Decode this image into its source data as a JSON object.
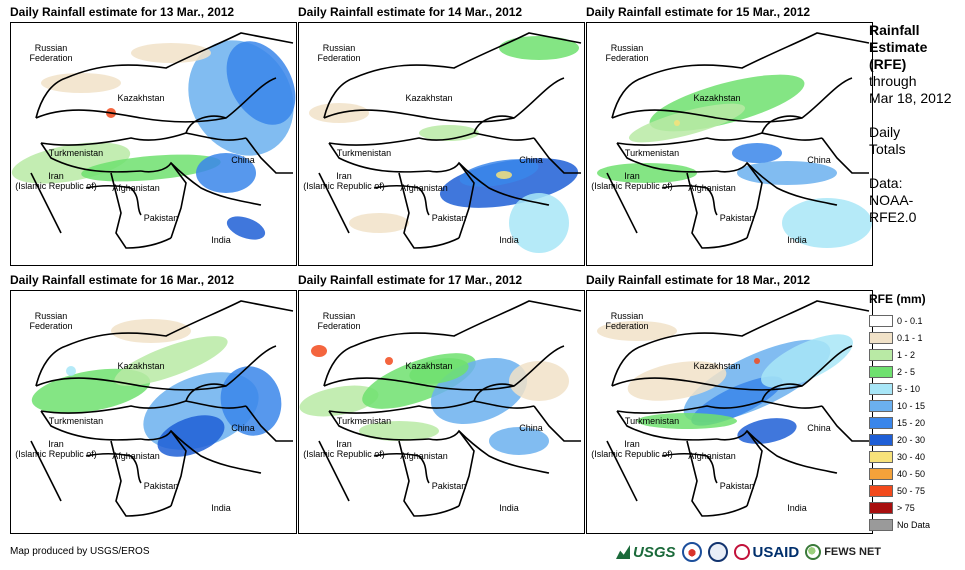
{
  "panels": [
    {
      "title": "Daily Rainfall estimate for 13 Mar., 2012",
      "pattern": "a"
    },
    {
      "title": "Daily Rainfall estimate for 14 Mar., 2012",
      "pattern": "b"
    },
    {
      "title": "Daily Rainfall estimate for 15 Mar., 2012",
      "pattern": "c"
    },
    {
      "title": "Daily Rainfall estimate for 16 Mar., 2012",
      "pattern": "d"
    },
    {
      "title": "Daily Rainfall estimate for 17 Mar., 2012",
      "pattern": "e"
    },
    {
      "title": "Daily Rainfall estimate for 18 Mar., 2012",
      "pattern": "f"
    }
  ],
  "countries": {
    "russia": "Russian\nFederation",
    "kazakhstan": "Kazakhstan",
    "turkmenistan": "Turkmenistan",
    "iran": "Iran\n(Islamic Republic of)",
    "afghanistan": "Afghanistan",
    "pakistan": "Pakistan",
    "india": "India",
    "china": "China"
  },
  "side": {
    "line1": "Rainfall",
    "line2": "Estimate",
    "line3": "(RFE)",
    "line4": "through",
    "line5": "Mar 18, 2012",
    "line6": "Daily",
    "line7": "Totals",
    "line8": "Data:",
    "line9": "NOAA-",
    "line10": "RFE2.0"
  },
  "legend": {
    "title": "RFE (mm)",
    "items": [
      {
        "label": "0 - 0.1",
        "color": "#ffffff"
      },
      {
        "label": "0.1 - 1",
        "color": "#f1e2c8"
      },
      {
        "label": "1 - 2",
        "color": "#b9eaa5"
      },
      {
        "label": "2 - 5",
        "color": "#6fe06f"
      },
      {
        "label": "5 - 10",
        "color": "#a8e6f7"
      },
      {
        "label": "10 - 15",
        "color": "#6bb0ef"
      },
      {
        "label": "15 - 20",
        "color": "#3a86ea"
      },
      {
        "label": "20 - 30",
        "color": "#1f5fd6"
      },
      {
        "label": "30 - 40",
        "color": "#f7e27a"
      },
      {
        "label": "40 - 50",
        "color": "#f4a23a"
      },
      {
        "label": "50 - 75",
        "color": "#f24a1c"
      },
      {
        "label": "> 75",
        "color": "#a80f0f"
      },
      {
        "label": "No Data",
        "color": "#9a9a9a"
      }
    ]
  },
  "credit": "Map produced by USGS/EROS",
  "logos": {
    "usgs": "USGS",
    "usaid": "USAID",
    "fews": "FEWS NET"
  }
}
